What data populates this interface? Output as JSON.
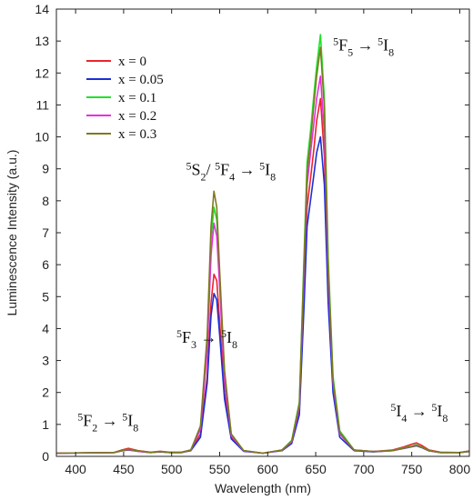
{
  "chart_data": {
    "type": "line",
    "xlabel": "Wavelength (nm)",
    "ylabel": "Luminescence Intensity (a.u.)",
    "xlim": [
      380,
      810
    ],
    "ylim": [
      0,
      14
    ],
    "xticks": [
      400,
      450,
      500,
      550,
      600,
      650,
      700,
      750,
      800
    ],
    "yticks": [
      0,
      1,
      2,
      3,
      4,
      5,
      6,
      7,
      8,
      9,
      10,
      11,
      12,
      13,
      14
    ],
    "grid": false,
    "legend_position": "top-left",
    "series": [
      {
        "name": "x = 0",
        "color": "#e8262b",
        "x": [
          380,
          440,
          448,
          455,
          465,
          478,
          488,
          498,
          510,
          520,
          530,
          537,
          541,
          544,
          547,
          550,
          555,
          562,
          575,
          595,
          615,
          625,
          633,
          638,
          641,
          645,
          648,
          651,
          655,
          659,
          663,
          668,
          675,
          690,
          710,
          730,
          742,
          750,
          755,
          760,
          768,
          780,
          800,
          810
        ],
        "y": [
          0.1,
          0.12,
          0.2,
          0.25,
          0.18,
          0.13,
          0.16,
          0.13,
          0.13,
          0.2,
          0.7,
          2.5,
          4.8,
          5.7,
          5.5,
          4.2,
          2.0,
          0.6,
          0.18,
          0.1,
          0.2,
          0.45,
          1.5,
          5.5,
          7.8,
          8.8,
          9.6,
          10.5,
          11.2,
          9.4,
          5.2,
          2.2,
          0.7,
          0.2,
          0.15,
          0.2,
          0.3,
          0.38,
          0.42,
          0.35,
          0.2,
          0.13,
          0.12,
          0.17
        ]
      },
      {
        "name": "x = 0.05",
        "color": "#1c2fd6",
        "x": [
          380,
          440,
          448,
          455,
          465,
          478,
          488,
          498,
          510,
          520,
          530,
          537,
          541,
          544,
          547,
          550,
          555,
          562,
          575,
          595,
          615,
          625,
          633,
          638,
          641,
          645,
          648,
          651,
          655,
          659,
          663,
          668,
          675,
          690,
          710,
          730,
          742,
          750,
          755,
          760,
          768,
          780,
          800,
          810
        ],
        "y": [
          0.1,
          0.12,
          0.17,
          0.2,
          0.16,
          0.12,
          0.14,
          0.12,
          0.12,
          0.18,
          0.6,
          2.3,
          4.4,
          5.1,
          4.9,
          3.8,
          1.8,
          0.55,
          0.16,
          0.1,
          0.18,
          0.4,
          1.3,
          4.8,
          7.2,
          8.1,
          8.8,
          9.5,
          10.0,
          8.5,
          4.8,
          2.0,
          0.6,
          0.18,
          0.14,
          0.18,
          0.25,
          0.3,
          0.33,
          0.28,
          0.17,
          0.12,
          0.12,
          0.15
        ]
      },
      {
        "name": "x = 0.1",
        "color": "#22e02a",
        "x": [
          380,
          440,
          448,
          455,
          465,
          478,
          488,
          498,
          510,
          520,
          530,
          537,
          541,
          544,
          547,
          550,
          555,
          562,
          575,
          595,
          615,
          625,
          633,
          638,
          641,
          645,
          648,
          651,
          655,
          659,
          663,
          668,
          675,
          690,
          710,
          730,
          742,
          750,
          755,
          760,
          768,
          780,
          800,
          810
        ],
        "y": [
          0.1,
          0.12,
          0.18,
          0.22,
          0.17,
          0.12,
          0.15,
          0.12,
          0.12,
          0.2,
          0.9,
          3.6,
          6.8,
          7.8,
          7.4,
          5.6,
          2.6,
          0.7,
          0.18,
          0.1,
          0.2,
          0.5,
          1.7,
          6.4,
          9.2,
          10.3,
          11.3,
          12.2,
          13.2,
          11.2,
          6.2,
          2.5,
          0.8,
          0.2,
          0.15,
          0.18,
          0.27,
          0.32,
          0.36,
          0.3,
          0.18,
          0.12,
          0.12,
          0.16
        ]
      },
      {
        "name": "x = 0.2",
        "color": "#e62fe0",
        "x": [
          380,
          440,
          448,
          455,
          465,
          478,
          488,
          498,
          510,
          520,
          530,
          537,
          541,
          544,
          547,
          550,
          555,
          562,
          575,
          595,
          615,
          625,
          633,
          638,
          641,
          645,
          648,
          651,
          655,
          659,
          663,
          668,
          675,
          690,
          710,
          730,
          742,
          750,
          755,
          760,
          768,
          780,
          800,
          810
        ],
        "y": [
          0.1,
          0.12,
          0.17,
          0.21,
          0.16,
          0.12,
          0.15,
          0.12,
          0.12,
          0.2,
          0.85,
          3.3,
          6.3,
          7.3,
          6.9,
          5.3,
          2.4,
          0.65,
          0.17,
          0.1,
          0.19,
          0.45,
          1.55,
          5.9,
          8.5,
          9.6,
          10.4,
          11.2,
          11.9,
          10.1,
          5.7,
          2.3,
          0.7,
          0.2,
          0.15,
          0.18,
          0.26,
          0.31,
          0.35,
          0.29,
          0.18,
          0.12,
          0.12,
          0.16
        ]
      },
      {
        "name": "x = 0.3",
        "color": "#7e7a1f",
        "x": [
          380,
          440,
          448,
          455,
          465,
          478,
          488,
          498,
          510,
          520,
          530,
          537,
          541,
          544,
          547,
          550,
          555,
          562,
          575,
          595,
          615,
          625,
          633,
          638,
          641,
          645,
          648,
          651,
          655,
          659,
          663,
          668,
          675,
          690,
          710,
          730,
          742,
          750,
          755,
          760,
          768,
          780,
          800,
          810
        ],
        "y": [
          0.1,
          0.12,
          0.18,
          0.22,
          0.17,
          0.12,
          0.15,
          0.12,
          0.12,
          0.2,
          0.95,
          3.8,
          7.2,
          8.3,
          7.8,
          5.8,
          2.7,
          0.7,
          0.18,
          0.1,
          0.2,
          0.48,
          1.65,
          6.2,
          8.9,
          10.0,
          11.0,
          11.9,
          12.8,
          10.9,
          6.0,
          2.4,
          0.75,
          0.2,
          0.15,
          0.18,
          0.26,
          0.31,
          0.35,
          0.29,
          0.18,
          0.12,
          0.12,
          0.16
        ]
      }
    ],
    "annotations": [
      {
        "text": "5F5 → 5I8",
        "x": 668,
        "y": 12.7
      },
      {
        "text": "5S2/ 5F4 → 5I8",
        "x": 515,
        "y": 8.8
      },
      {
        "text": "5F3 → 5I8",
        "x": 505,
        "y": 3.55
      },
      {
        "text": "5F2 → 5I8",
        "x": 402,
        "y": 0.95
      },
      {
        "text": "5I4 → 5I8",
        "x": 728,
        "y": 1.25
      }
    ]
  }
}
